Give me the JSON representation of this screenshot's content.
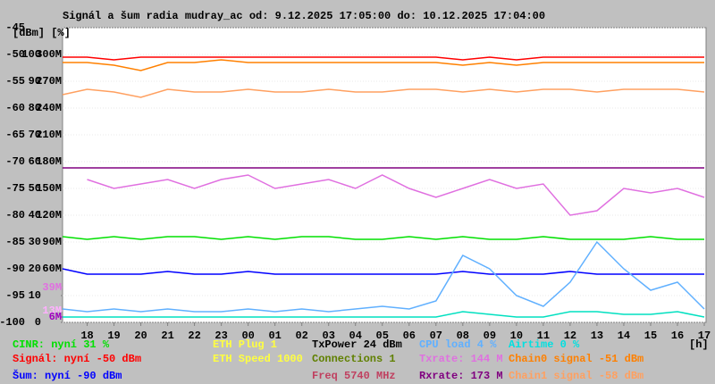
{
  "chart_data": {
    "type": "line",
    "title": "Signál a šum radia mudray_ac od: 9.12.2025 17:05:00 do: 10.12.2025 17:04:00",
    "y_unit_label": "[dBm] [%]",
    "x_unit_label": "[h]",
    "x": [
      17.0833,
      18,
      19,
      20,
      21,
      22,
      23,
      24,
      25,
      26,
      27,
      28,
      29,
      30,
      31,
      32,
      33,
      34,
      35,
      36,
      37,
      38,
      39,
      40,
      41
    ],
    "xlim": [
      17.0833,
      41.0667
    ],
    "xticks": [
      {
        "value": 18,
        "label": "18"
      },
      {
        "value": 19,
        "label": "19"
      },
      {
        "value": 20,
        "label": "20"
      },
      {
        "value": 21,
        "label": "21"
      },
      {
        "value": 22,
        "label": "22"
      },
      {
        "value": 23,
        "label": "23"
      },
      {
        "value": 24,
        "label": "00"
      },
      {
        "value": 25,
        "label": "01"
      },
      {
        "value": 26,
        "label": "02"
      },
      {
        "value": 27,
        "label": "03"
      },
      {
        "value": 28,
        "label": "04"
      },
      {
        "value": 29,
        "label": "05"
      },
      {
        "value": 30,
        "label": "06"
      },
      {
        "value": 31,
        "label": "07"
      },
      {
        "value": 32,
        "label": "08"
      },
      {
        "value": 33,
        "label": "09"
      },
      {
        "value": 34,
        "label": "10"
      },
      {
        "value": 35,
        "label": "11"
      },
      {
        "value": 36,
        "label": "12"
      },
      {
        "value": 37,
        "label": "13"
      },
      {
        "value": 38,
        "label": "14"
      },
      {
        "value": 39,
        "label": "15"
      },
      {
        "value": 40,
        "label": "16"
      },
      {
        "value": 41,
        "label": "17"
      }
    ],
    "ylim": [
      -100,
      -45
    ],
    "yticks": [
      -100,
      -95,
      -90,
      -85,
      -80,
      -75,
      -70,
      -65,
      -60,
      -55,
      -50,
      -45
    ],
    "y2lim": [
      0,
      110
    ],
    "y2ticks": [
      0,
      10,
      20,
      30,
      40,
      50,
      60,
      70,
      80,
      90,
      100
    ],
    "y3lim": [
      0,
      330
    ],
    "y3ticks": [
      {
        "value": 60,
        "label": "60M"
      },
      {
        "value": 90,
        "label": "90M"
      },
      {
        "value": 120,
        "label": "120M"
      },
      {
        "value": 150,
        "label": "150M"
      },
      {
        "value": 180,
        "label": "180M"
      },
      {
        "value": 210,
        "label": "210M"
      },
      {
        "value": 240,
        "label": "240M"
      },
      {
        "value": 270,
        "label": "270M"
      },
      {
        "value": 300,
        "label": "300M"
      }
    ],
    "y3_marker_labels": [
      {
        "value": 39,
        "label": "39M",
        "color": "#e070e0"
      },
      {
        "value": 13,
        "label": "13M",
        "color": "#ffb0ff"
      },
      {
        "value": 6,
        "label": "6M",
        "color": "#a000c0"
      }
    ],
    "grid": true,
    "series": [
      {
        "color": "#e070e0",
        "axis": "y3",
        "values": [
          null,
          160,
          150,
          155,
          160,
          150,
          160,
          165,
          150,
          155,
          160,
          150,
          165,
          150,
          140,
          150,
          160,
          150,
          155,
          120,
          125,
          150,
          145,
          150,
          140
        ]
      },
      {
        "color": "#800080",
        "axis": "y3",
        "values": [
          173,
          173,
          173,
          173,
          173,
          173,
          173,
          173,
          173,
          173,
          173,
          173,
          173,
          173,
          173,
          173,
          173,
          173,
          173,
          173,
          173,
          173,
          173,
          173,
          173
        ]
      },
      {
        "color": "#ffa060",
        "axis": "y",
        "values": [
          -57.5,
          -56.5,
          -57,
          -58,
          -56.5,
          -57,
          -57,
          -56.5,
          -57,
          -57,
          -56.5,
          -57,
          -57,
          -56.5,
          -56.5,
          -57,
          -56.5,
          -57,
          -56.5,
          -56.5,
          -57,
          -56.5,
          -56.5,
          -56.5,
          -57
        ]
      },
      {
        "color": "#ff8000",
        "axis": "y",
        "values": [
          -51.5,
          -51.5,
          -52,
          -53,
          -51.5,
          -51.5,
          -51,
          -51.5,
          -51.5,
          -51.5,
          -51.5,
          -51.5,
          -51.5,
          -51.5,
          -51.5,
          -52,
          -51.5,
          -52,
          -51.5,
          -51.5,
          -51.5,
          -51.5,
          -51.5,
          -51.5,
          -51.5
        ]
      },
      {
        "color": "#ff0000",
        "axis": "y",
        "values": [
          -50.5,
          -50.5,
          -51,
          -50.5,
          -50.5,
          -50.5,
          -50.5,
          -50.5,
          -50.5,
          -50.5,
          -50.5,
          -50.5,
          -50.5,
          -50.5,
          -50.5,
          -51,
          -50.5,
          -51,
          -50.5,
          -50.5,
          -50.5,
          -50.5,
          -50.5,
          -50.5,
          -50.5
        ]
      },
      {
        "color": "#0000ff",
        "axis": "y",
        "values": [
          -90,
          -91,
          -91,
          -91,
          -90.5,
          -91,
          -91,
          -90.5,
          -91,
          -91,
          -91,
          -91,
          -91,
          -91,
          -91,
          -90.5,
          -91,
          -91,
          -91,
          -90.5,
          -91,
          -91,
          -91,
          -91,
          -91
        ]
      },
      {
        "color": "#00e000",
        "axis": "y2",
        "values": [
          32,
          31,
          32,
          31,
          32,
          32,
          31,
          32,
          31,
          32,
          32,
          31,
          31,
          32,
          31,
          32,
          31,
          31,
          32,
          31,
          31,
          31,
          32,
          31,
          31
        ]
      },
      {
        "color": "#60b0ff",
        "axis": "y2",
        "values": [
          5,
          4,
          5,
          4,
          5,
          4,
          4,
          5,
          4,
          5,
          4,
          5,
          6,
          5,
          8,
          25,
          20,
          10,
          6,
          15,
          30,
          20,
          12,
          15,
          5
        ]
      },
      {
        "color": "#00e0c0",
        "axis": "y2",
        "values": [
          2,
          2,
          2,
          2,
          2,
          2,
          2,
          2,
          2,
          2,
          2,
          2,
          2,
          2,
          2,
          4,
          3,
          2,
          2,
          4,
          4,
          3,
          3,
          4,
          2
        ]
      }
    ],
    "legend_rows": [
      [
        {
          "text": "CINR: nyní 31 %",
          "color": "#00e000"
        },
        {
          "text": "ETH Plug 1",
          "color": "#ffff40"
        },
        {
          "text": "TxPower 24 dBm",
          "color": "#000000"
        },
        {
          "text": "CPU load 4 %",
          "color": "#60b0ff"
        },
        {
          "text": "Airtime 0 %",
          "color": "#00e0e0"
        }
      ],
      [
        {
          "text": "Signál: nyní -50 dBm",
          "color": "#ff0000"
        },
        {
          "text": "ETH Speed 1000",
          "color": "#ffff40"
        },
        {
          "text": "Connections 1",
          "color": "#608000"
        },
        {
          "text": "Txrate: 144 M",
          "color": "#e070e0"
        },
        {
          "text": "Chain0 signal -51 dBm",
          "color": "#ff8000"
        }
      ],
      [
        {
          "text": "Šum: nyní -90 dBm",
          "color": "#0000ff"
        },
        null,
        {
          "text": "Freq 5740 MHz",
          "color": "#c04060"
        },
        {
          "text": "Rxrate: 173 M",
          "color": "#800080"
        },
        {
          "text": "Chain1 signal -58 dBm",
          "color": "#ffa060"
        }
      ]
    ]
  }
}
